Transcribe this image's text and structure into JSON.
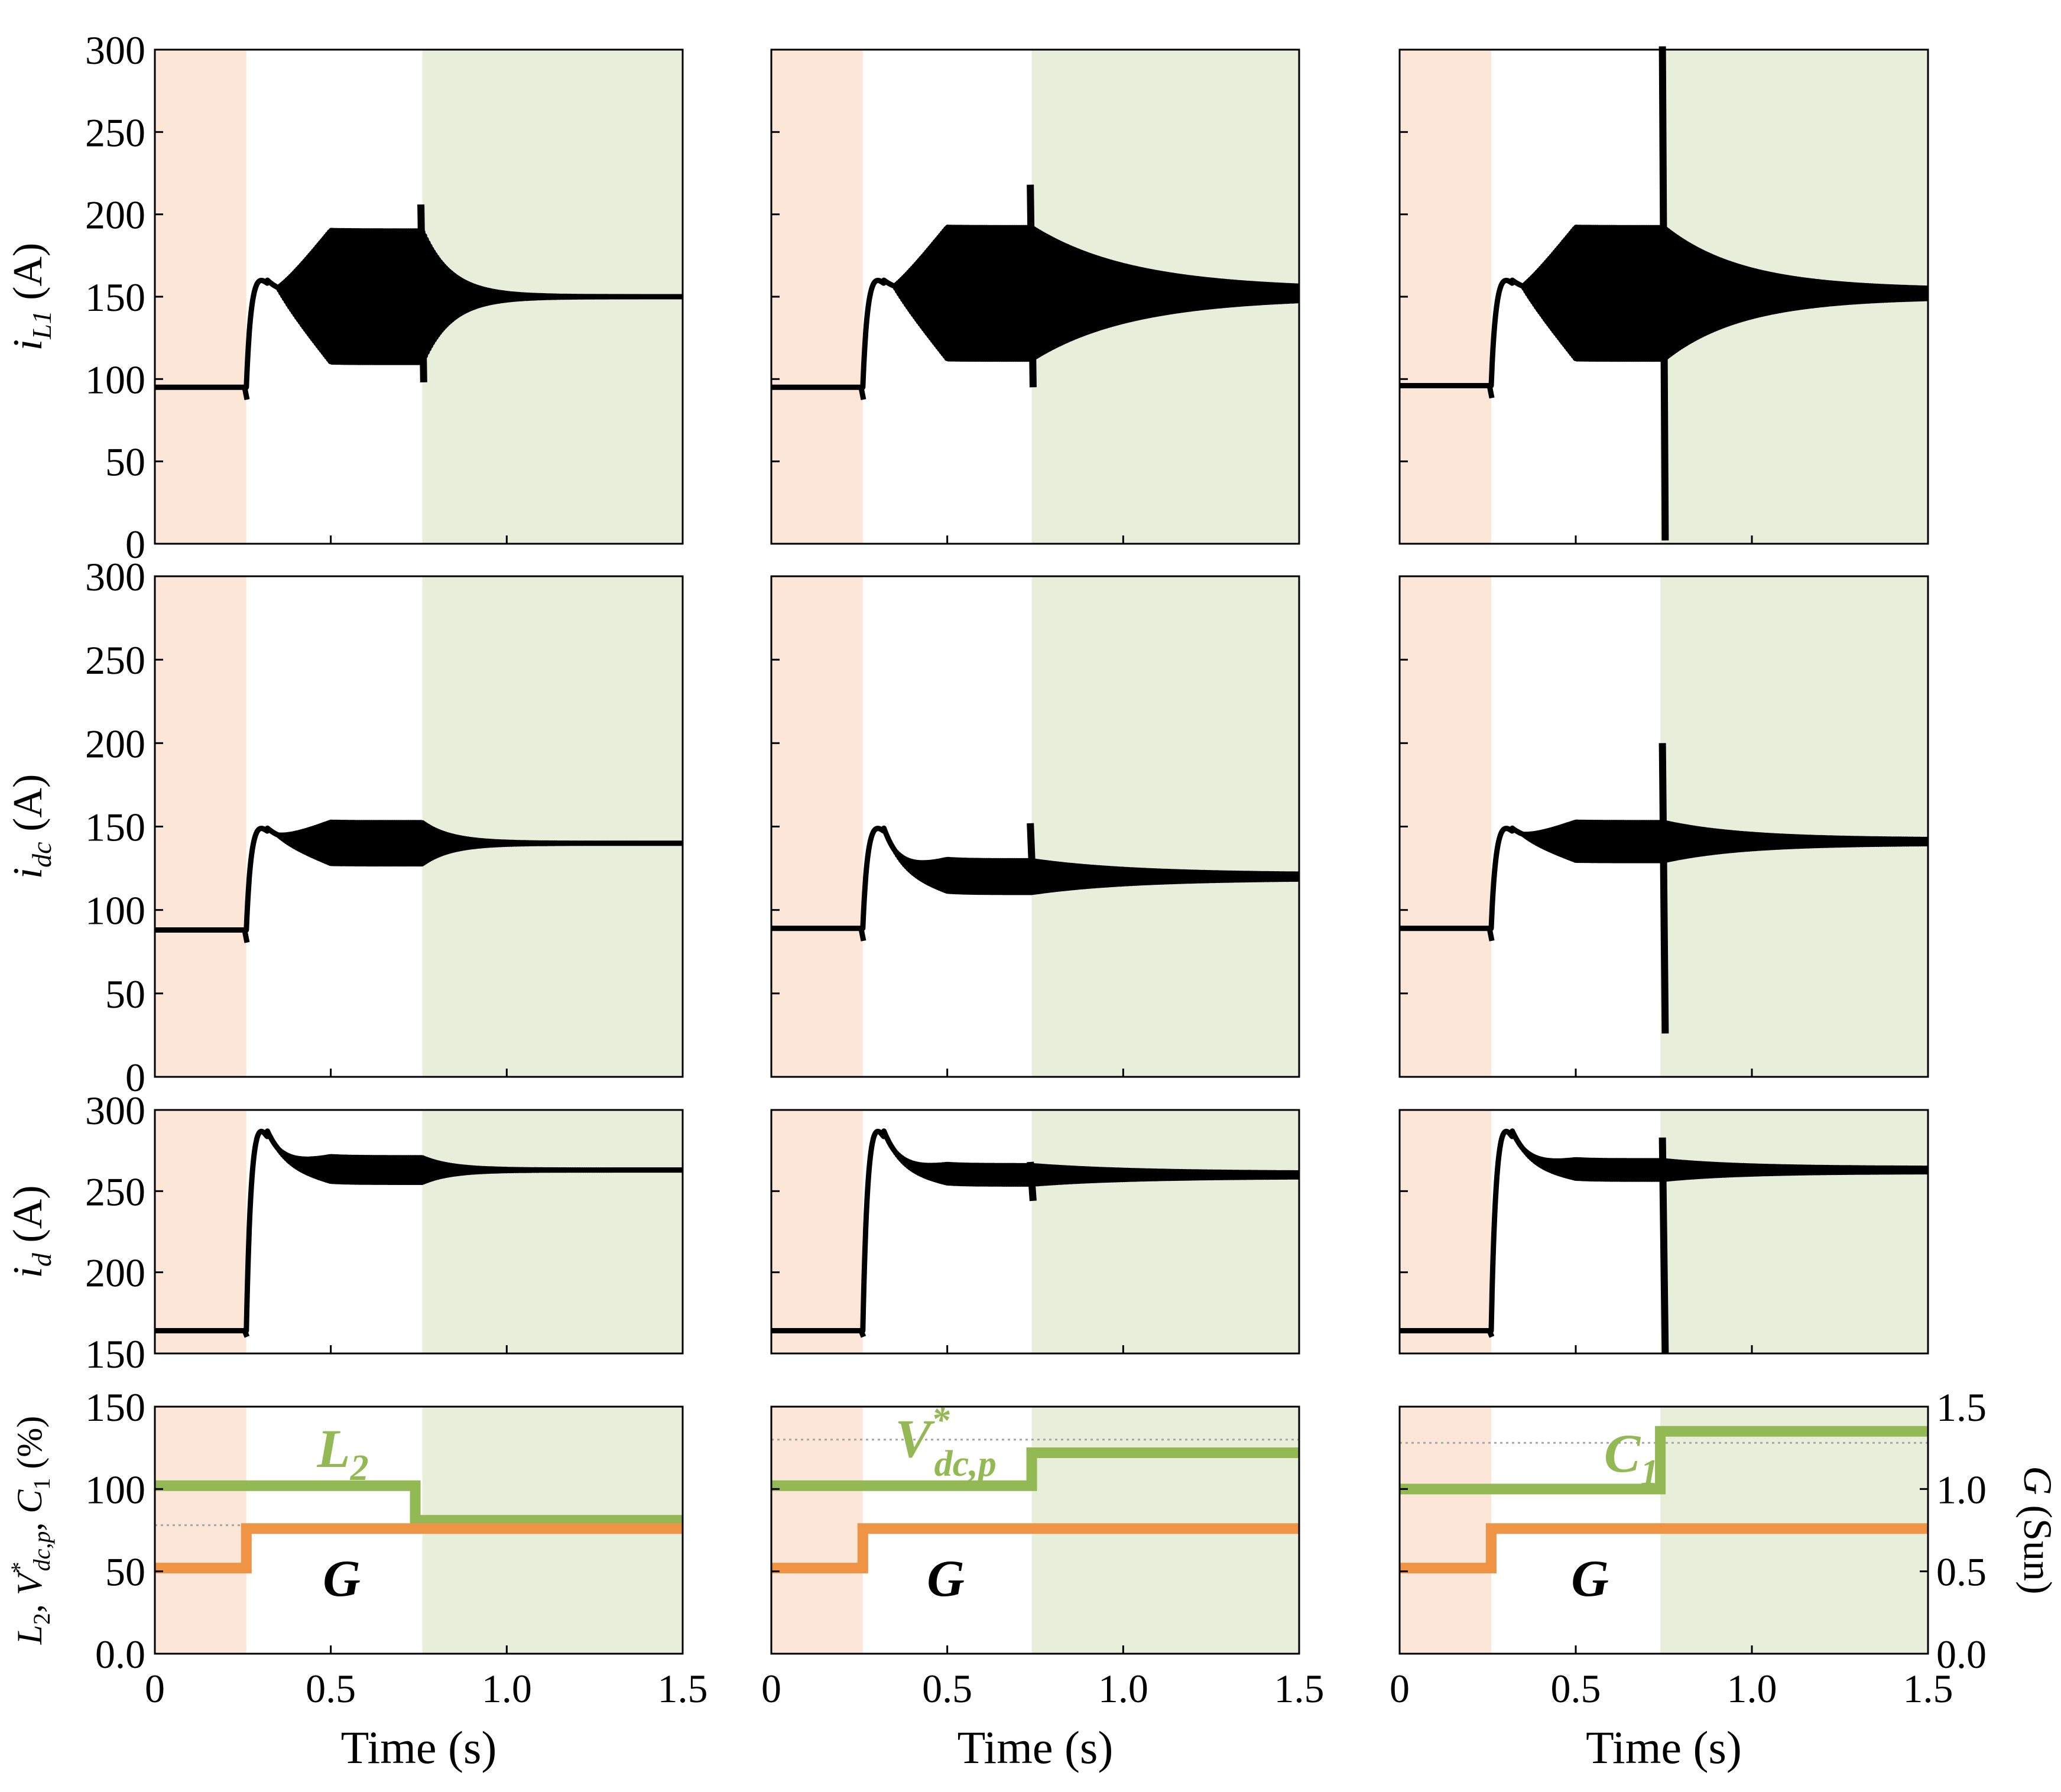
{
  "colors": {
    "phase1": "#fbe6d8",
    "phase3": "#e7efdb",
    "trace": "#000000",
    "green_param": "#93b954",
    "orange_G": "#ef9445",
    "label_G": "#f5b800",
    "dotted": "#a6a6a6"
  },
  "chart_data": {
    "type": "line",
    "layout": "4 rows x 3 columns of subplots sharing the time axis",
    "x_axis": {
      "label": "Time (s)",
      "range": [
        0,
        1.5
      ],
      "ticks": [
        "0",
        "0.5",
        "1.0",
        "1.5"
      ]
    },
    "column_phases": [
      {
        "phase1_end": 0.26,
        "phase3_start": 0.76
      },
      {
        "phase1_end": 0.26,
        "phase3_start": 0.74
      },
      {
        "phase1_end": 0.26,
        "phase3_start": 0.74
      }
    ],
    "rows": [
      {
        "id": "iL1",
        "ylabel": {
          "base": "i",
          "sub": "L1",
          "unit": " (A)"
        },
        "ylim": [
          0,
          300
        ],
        "yticks": [
          "0",
          "50",
          "100",
          "150",
          "200",
          "250",
          "300"
        ],
        "panels": [
          {
            "pre": 95,
            "post": 150,
            "osc_peak": 160,
            "osc_amp": 42,
            "transient": "decay_from_end",
            "trans_t": 0.76,
            "final_amp": 0,
            "spike": 206,
            "spike_low": 98
          },
          {
            "pre": 95,
            "post": 152,
            "osc_peak": 160,
            "osc_amp": 42,
            "transient": "slow_decay",
            "trans_t": 0.74,
            "final_amp": 2,
            "spike": 218,
            "spike_low": 95
          },
          {
            "pre": 96,
            "post": 152,
            "osc_peak": 160,
            "osc_amp": 42,
            "transient": "spike",
            "trans_t": 0.75,
            "final_amp": 2,
            "spike": 302,
            "spike_low": 2
          }
        ]
      },
      {
        "id": "idc",
        "ylabel": {
          "base": "i",
          "sub": "dc",
          "unit": " (A)"
        },
        "ylim": [
          0,
          300
        ],
        "yticks": [
          "0",
          "50",
          "100",
          "150",
          "200",
          "250",
          "300"
        ],
        "panels": [
          {
            "pre": 88,
            "post": 140,
            "osc_peak": 149,
            "osc_amp": 13,
            "transient": "decay_from_end",
            "trans_t": 0.76,
            "final_amp": 0,
            "spike": 152,
            "spike_low": 128
          },
          {
            "pre": 89,
            "post": 120,
            "osc_peak": 149,
            "osc_amp": 10,
            "transient": "slow_decay",
            "trans_t": 0.74,
            "final_amp": 1,
            "spike": 152,
            "spike_low": 110
          },
          {
            "pre": 89,
            "post": 141,
            "osc_peak": 149,
            "osc_amp": 12,
            "transient": "spike",
            "trans_t": 0.75,
            "final_amp": 1,
            "spike": 200,
            "spike_low": 26
          }
        ]
      },
      {
        "id": "id",
        "ylabel": {
          "base": "i",
          "sub": "d",
          "unit": " (A)"
        },
        "ylim": [
          150,
          300
        ],
        "yticks": [
          "150",
          "200",
          "250",
          "300"
        ],
        "panels": [
          {
            "pre": 164,
            "post": 263,
            "osc_peak": 287,
            "osc_amp": 8,
            "transient": "decay_from_end",
            "trans_t": 0.76,
            "final_amp": 0,
            "spike": 270,
            "spike_low": 255
          },
          {
            "pre": 164,
            "post": 260,
            "osc_peak": 287,
            "osc_amp": 6,
            "transient": "slow_decay",
            "trans_t": 0.74,
            "final_amp": 1,
            "spike": 268,
            "spike_low": 244
          },
          {
            "pre": 164,
            "post": 263,
            "osc_peak": 287,
            "osc_amp": 6,
            "transient": "spike",
            "trans_t": 0.75,
            "final_amp": 1,
            "spike": 283,
            "spike_low": 150
          }
        ]
      },
      {
        "id": "params",
        "ylabel_left": {
          "parts": [
            "L",
            "2",
            ", ",
            "V",
            "*",
            "dc,p",
            ",  ",
            "C",
            "1",
            " (%)"
          ]
        },
        "ylabel_right": {
          "base": "G",
          "unit": " (Sun)"
        },
        "ylim": [
          0,
          150
        ],
        "yticks": [
          "0.0",
          "50",
          "100",
          "150"
        ],
        "ylim_right": [
          0,
          1.5
        ],
        "yticks_right": [
          "0.0",
          "0.5",
          "1.0",
          "1.5"
        ],
        "panels": [
          {
            "param_name": "L",
            "param_sub": "2",
            "param_sup": "",
            "param_before": 102,
            "param_after": 81,
            "param_step_t": 0.74,
            "G_before": 0.52,
            "G_after": 0.76,
            "G_step_t": 0.26,
            "dotted_level": 78
          },
          {
            "param_name": "V",
            "param_sub": "dc,p",
            "param_sup": "*",
            "param_before": 102,
            "param_after": 122,
            "param_step_t": 0.74,
            "G_before": 0.52,
            "G_after": 0.76,
            "G_step_t": 0.26,
            "dotted_level": 130
          },
          {
            "param_name": "C",
            "param_sub": "1",
            "param_sup": "",
            "param_before": 100,
            "param_after": 135,
            "param_step_t": 0.74,
            "G_before": 0.52,
            "G_after": 0.76,
            "G_step_t": 0.26,
            "dotted_level": 128
          }
        ],
        "G_label": "G"
      }
    ]
  }
}
